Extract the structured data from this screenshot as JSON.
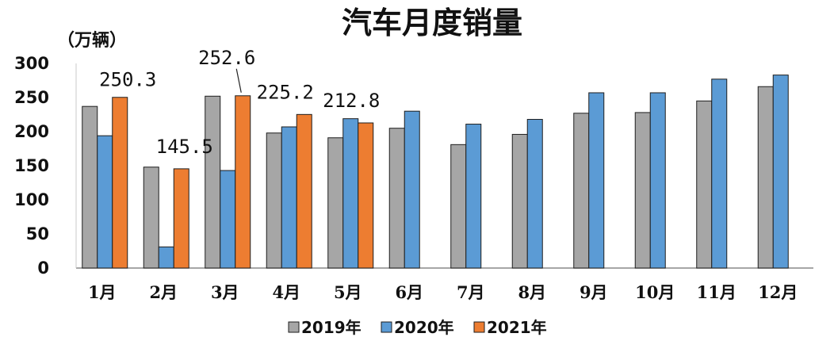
{
  "chart_data": {
    "type": "bar",
    "title": "汽车月度销量",
    "ylabel": "（万辆）",
    "xlabel": "",
    "ylim": [
      0,
      300
    ],
    "yticks": [
      0,
      50,
      100,
      150,
      200,
      250,
      300
    ],
    "categories": [
      "1月",
      "2月",
      "3月",
      "4月",
      "5月",
      "6月",
      "7月",
      "8月",
      "9月",
      "10月",
      "11月",
      "12月"
    ],
    "series": [
      {
        "name": "2019年",
        "color": "#a6a6a6",
        "values": [
          237,
          148,
          252,
          198,
          191,
          205,
          181,
          196,
          227,
          228,
          245,
          266
        ]
      },
      {
        "name": "2020年",
        "color": "#5b9bd5",
        "values": [
          194,
          31,
          143,
          207,
          219,
          230,
          211,
          218,
          257,
          257,
          277,
          283
        ]
      },
      {
        "name": "2021年",
        "color": "#ed7d31",
        "values": [
          250.3,
          145.5,
          252.6,
          225.2,
          212.8,
          null,
          null,
          null,
          null,
          null,
          null,
          null
        ]
      }
    ],
    "data_labels": [
      "250.3",
      "145.5",
      "252.6",
      "225.2",
      "212.8"
    ],
    "grid": false,
    "legend_position": "bottom"
  }
}
